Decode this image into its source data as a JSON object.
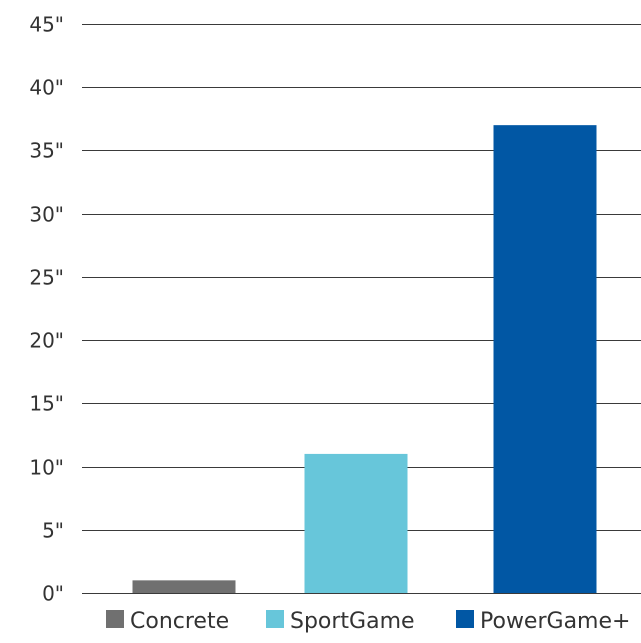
{
  "chart_data": {
    "type": "bar",
    "categories": [
      "Concrete",
      "SportGame",
      "PowerGame+"
    ],
    "values": [
      1,
      11,
      37
    ],
    "ylim": [
      0,
      45
    ],
    "yticks": [
      0,
      5,
      10,
      15,
      20,
      25,
      30,
      35,
      40,
      45
    ],
    "ytick_labels": [
      "0\"",
      "5\"",
      "10\"",
      "15\"",
      "20\"",
      "25\"",
      "30\"",
      "35\"",
      "40\"",
      "45\""
    ],
    "colors": [
      "#707070",
      "#67c6da",
      "#0157a4"
    ],
    "grid": true,
    "legend": {
      "placement": "bottom",
      "entries": [
        "Concrete",
        "SportGame",
        "PowerGame+"
      ]
    },
    "title": "",
    "xlabel": "",
    "ylabel": ""
  }
}
